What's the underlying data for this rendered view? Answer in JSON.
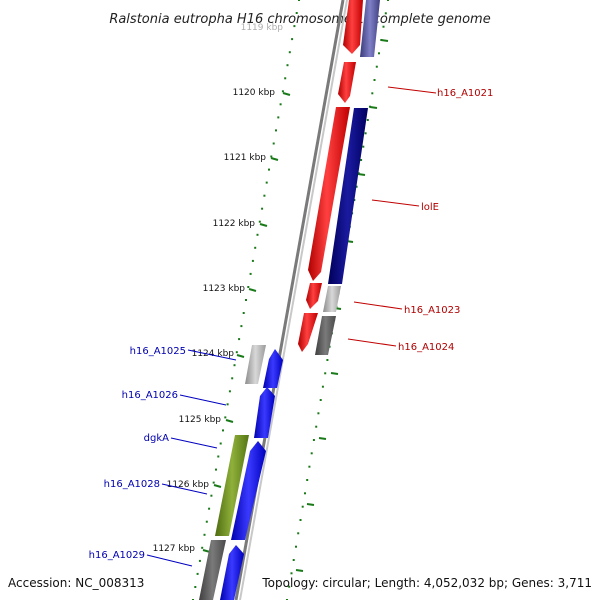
{
  "title": "Ralstonia eutropha H16 chromosome 1, complete genome",
  "footer": {
    "accession": "Accession: NC_008313",
    "summary": "Topology: circular; Length: 4,052,032 bp; Genes: 3,711"
  },
  "colors": {
    "forward_gene": "#ff0000",
    "forward_strand_dark": "#000080",
    "reverse_gene": "#0000ff",
    "forward_label": "#b00000",
    "reverse_label": "#0000b0",
    "tick": "#1a7a1a",
    "backbone": "#808080",
    "grey_gene": "#b4b4b4",
    "dark_grey_gene": "#666666",
    "olive_gene": "#6b8e23",
    "slate_gene": "#6a5acd"
  },
  "scale": {
    "unit": "kbp",
    "labels": [
      "1119 kbp",
      "1120 kbp",
      "1121 kbp",
      "1122 kbp",
      "1123 kbp",
      "1124 kbp",
      "1125 kbp",
      "1126 kbp",
      "1127 kbp"
    ]
  },
  "gene_labels": {
    "forward": [
      "h16_A1021",
      "lolE",
      "h16_A1023",
      "h16_A1024"
    ],
    "reverse": [
      "h16_A1025",
      "h16_A1026",
      "dgkA",
      "h16_A1028",
      "h16_A1029"
    ]
  }
}
